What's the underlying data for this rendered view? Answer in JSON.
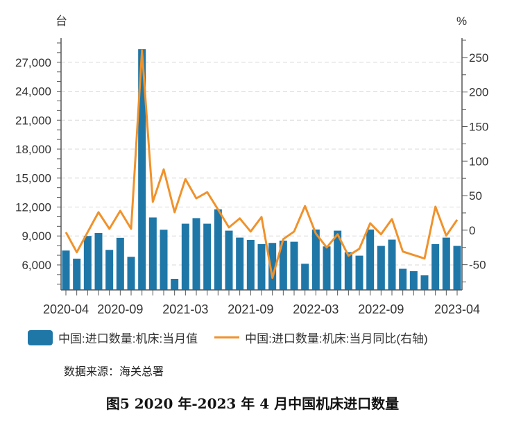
{
  "chart_data": {
    "type": "bar+line",
    "left_unit": "台",
    "right_unit": "%",
    "x": [
      "2020-04",
      "2020-05",
      "2020-06",
      "2020-07",
      "2020-08",
      "2020-09",
      "2020-10",
      "2020-11",
      "2020-12",
      "2021-01",
      "2021-02",
      "2021-03",
      "2021-04",
      "2021-05",
      "2021-06",
      "2021-07",
      "2021-08",
      "2021-09",
      "2021-10",
      "2021-11",
      "2021-12",
      "2022-01",
      "2022-02",
      "2022-03",
      "2022-04",
      "2022-05",
      "2022-06",
      "2022-07",
      "2022-08",
      "2022-09",
      "2022-10",
      "2022-11",
      "2022-12",
      "2023-01",
      "2023-02",
      "2023-03",
      "2023-04"
    ],
    "x_tick_labels": [
      {
        "label": "2020-04",
        "index": 0
      },
      {
        "label": "2020-09",
        "index": 5
      },
      {
        "label": "2021-03",
        "index": 11
      },
      {
        "label": "2021-09",
        "index": 17
      },
      {
        "label": "2022-03",
        "index": 23
      },
      {
        "label": "2022-09",
        "index": 29
      },
      {
        "label": "2023-04",
        "index": 36
      }
    ],
    "series": [
      {
        "name": "中国:进口数量:机床:当月值",
        "type": "bar",
        "axis": "left",
        "color": "#1f77a8",
        "values": [
          7490,
          6650,
          9000,
          9310,
          7560,
          8810,
          6840,
          28350,
          10920,
          9650,
          4560,
          10270,
          10850,
          10270,
          11760,
          9550,
          8830,
          8590,
          8160,
          8280,
          8520,
          8400,
          6120,
          9670,
          7920,
          9550,
          7320,
          6960,
          9670,
          7970,
          8620,
          5600,
          5350,
          4920,
          8160,
          8830,
          7970
        ]
      },
      {
        "name": "中国:进口数量:机床:当月同比(右轴)",
        "type": "line",
        "axis": "right",
        "color": "#f0922b",
        "values": [
          -3,
          -32,
          -3,
          26,
          2,
          28,
          2,
          260,
          41,
          88,
          26,
          74,
          46,
          55,
          30,
          4,
          17,
          -2,
          19,
          -69,
          -13,
          -2,
          35,
          -5,
          -25,
          -6,
          -37,
          -27,
          10,
          -6,
          16,
          -31,
          -36,
          -41,
          34,
          -8,
          15
        ]
      }
    ],
    "left_ticks": [
      "6,000",
      "9,000",
      "12,000",
      "15,000",
      "18,000",
      "21,000",
      "24,000",
      "27,000"
    ],
    "left_tick_values": [
      6000,
      9000,
      12000,
      15000,
      18000,
      21000,
      24000,
      27000
    ],
    "right_ticks": [
      "-50",
      "0",
      "50",
      "100",
      "150",
      "200",
      "250"
    ],
    "right_tick_values": [
      -50,
      0,
      50,
      100,
      150,
      200,
      250
    ],
    "ylim_left": [
      3410,
      29500
    ],
    "ylim_right": [
      -86.5,
      278
    ],
    "grid": true,
    "legend_position": "bottom"
  },
  "source": "数据来源：海关总署",
  "caption": "图5  2020 年-2023 年 4 月中国机床进口数量"
}
